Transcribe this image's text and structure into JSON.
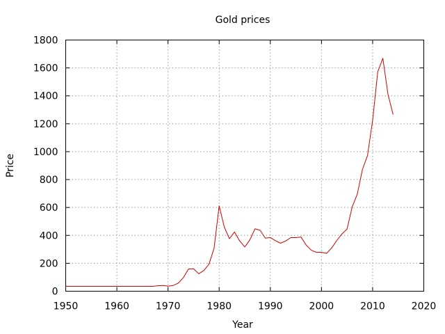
{
  "chart_data": {
    "type": "line",
    "title": "Gold prices",
    "xlabel": "Year",
    "ylabel": "Price",
    "xlim": [
      1950,
      2020
    ],
    "ylim": [
      0,
      1800
    ],
    "xticks": [
      1950,
      1960,
      1970,
      1980,
      1990,
      2000,
      2010,
      2020
    ],
    "yticks": [
      0,
      200,
      400,
      600,
      800,
      1000,
      1200,
      1400,
      1600,
      1800
    ],
    "grid": true,
    "legend": "none",
    "series": [
      {
        "color": "#cc0000",
        "x": [
          1950,
          1951,
          1952,
          1953,
          1954,
          1955,
          1956,
          1957,
          1958,
          1959,
          1960,
          1961,
          1962,
          1963,
          1964,
          1965,
          1966,
          1967,
          1968,
          1969,
          1970,
          1971,
          1972,
          1973,
          1974,
          1975,
          1976,
          1977,
          1978,
          1979,
          1980,
          1981,
          1982,
          1983,
          1984,
          1985,
          1986,
          1987,
          1988,
          1989,
          1990,
          1991,
          1992,
          1993,
          1994,
          1995,
          1996,
          1997,
          1998,
          1999,
          2000,
          2001,
          2002,
          2003,
          2004,
          2005,
          2006,
          2007,
          2008,
          2009,
          2010,
          2011,
          2012,
          2013,
          2014
        ],
        "y": [
          35,
          35,
          35,
          35,
          35,
          35,
          35,
          35,
          35,
          35,
          35,
          35,
          35,
          35,
          35,
          35,
          35,
          35,
          39,
          41,
          36,
          41,
          58,
          97,
          159,
          161,
          125,
          148,
          193,
          307,
          612,
          460,
          376,
          424,
          361,
          317,
          368,
          447,
          437,
          381,
          384,
          362,
          344,
          360,
          384,
          384,
          388,
          331,
          294,
          279,
          279,
          271,
          310,
          364,
          410,
          445,
          604,
          695,
          872,
          972,
          1225,
          1572,
          1669,
          1411,
          1266
        ]
      }
    ]
  }
}
